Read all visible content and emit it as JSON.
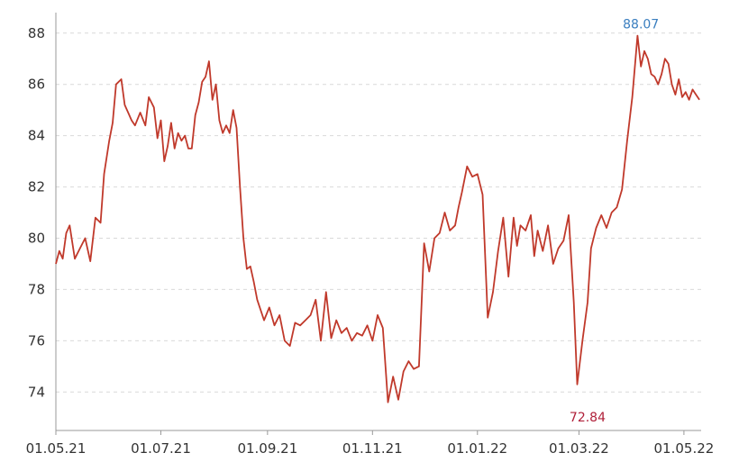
{
  "chart_data": {
    "type": "line",
    "title": "",
    "xlabel": "",
    "ylabel": "",
    "ylim": [
      72.5,
      88.8
    ],
    "y_ticks": [
      74,
      76,
      78,
      80,
      82,
      84,
      86,
      88
    ],
    "x_ticks": [
      "01.05.21",
      "01.07.21",
      "01.09.21",
      "01.11.21",
      "01.01.22",
      "01.03.22",
      "01.05.22"
    ],
    "x_range": [
      "2021-05-01",
      "2022-05-11"
    ],
    "grid": "horizontal-dashed",
    "colors": {
      "line": "#c0392b",
      "max_label": "#3a7ebf",
      "min_label": "#b0203a",
      "grid": "#d9d9d9"
    },
    "series": [
      {
        "x": [
          "2021-05-01",
          "2021-05-03",
          "2021-05-05",
          "2021-05-07",
          "2021-05-09",
          "2021-05-12",
          "2021-05-15",
          "2021-05-18",
          "2021-05-21",
          "2021-05-24",
          "2021-05-27",
          "2021-05-29",
          "2021-06-01",
          "2021-06-03",
          "2021-06-05",
          "2021-06-08",
          "2021-06-10",
          "2021-06-12",
          "2021-06-14",
          "2021-06-16",
          "2021-06-19",
          "2021-06-22",
          "2021-06-24",
          "2021-06-27",
          "2021-06-29",
          "2021-07-01",
          "2021-07-03",
          "2021-07-05",
          "2021-07-07",
          "2021-07-09",
          "2021-07-11",
          "2021-07-13",
          "2021-07-15",
          "2021-07-17",
          "2021-07-19",
          "2021-07-21",
          "2021-07-23",
          "2021-07-25",
          "2021-07-27",
          "2021-07-29",
          "2021-07-31",
          "2021-08-02",
          "2021-08-04",
          "2021-08-06",
          "2021-08-08",
          "2021-08-10",
          "2021-08-12",
          "2021-08-14",
          "2021-08-16",
          "2021-08-18",
          "2021-08-20",
          "2021-08-22",
          "2021-08-24",
          "2021-08-26",
          "2021-08-28",
          "2021-08-30",
          "2021-09-02",
          "2021-09-05",
          "2021-09-08",
          "2021-09-11",
          "2021-09-14",
          "2021-09-17",
          "2021-09-20",
          "2021-09-23",
          "2021-09-26",
          "2021-09-29",
          "2021-10-02",
          "2021-10-05",
          "2021-10-08",
          "2021-10-11",
          "2021-10-14",
          "2021-10-17",
          "2021-10-20",
          "2021-10-23",
          "2021-10-26",
          "2021-10-29",
          "2021-11-01",
          "2021-11-04",
          "2021-11-07",
          "2021-11-10",
          "2021-11-13",
          "2021-11-16",
          "2021-11-19",
          "2021-11-22",
          "2021-11-25",
          "2021-11-28",
          "2021-12-01",
          "2021-12-04",
          "2021-12-07",
          "2021-12-10",
          "2021-12-13",
          "2021-12-16",
          "2021-12-19",
          "2021-12-21",
          "2021-12-23",
          "2021-12-26",
          "2021-12-29",
          "2022-01-01",
          "2022-01-04",
          "2022-01-07",
          "2022-01-10",
          "2022-01-13",
          "2022-01-16",
          "2022-01-19",
          "2022-01-22",
          "2022-01-24",
          "2022-01-26",
          "2022-01-29",
          "2022-02-01",
          "2022-02-03",
          "2022-02-05",
          "2022-02-08",
          "2022-02-11",
          "2022-02-14",
          "2022-02-17",
          "2022-02-20",
          "2022-02-23",
          "2022-02-26",
          "2022-02-28",
          "2022-03-03",
          "2022-03-06",
          "2022-03-08",
          "2022-03-11",
          "2022-03-14",
          "2022-03-17",
          "2022-03-20",
          "2022-03-23",
          "2022-03-26",
          "2022-03-29",
          "2022-04-01",
          "2022-04-04",
          "2022-04-06",
          "2022-04-08",
          "2022-04-10",
          "2022-04-12",
          "2022-04-14",
          "2022-04-16",
          "2022-04-18",
          "2022-04-20",
          "2022-04-22",
          "2022-04-24",
          "2022-04-26",
          "2022-04-28",
          "2022-04-30",
          "2022-05-02",
          "2022-05-04",
          "2022-05-06",
          "2022-05-08",
          "2022-05-10"
        ],
        "values": [
          79.0,
          79.5,
          79.2,
          80.2,
          80.5,
          79.2,
          79.6,
          80.0,
          79.1,
          80.8,
          80.6,
          82.5,
          83.8,
          84.5,
          86.0,
          86.2,
          85.2,
          84.9,
          84.6,
          84.4,
          84.9,
          84.4,
          85.5,
          85.1,
          83.9,
          84.6,
          83.0,
          83.6,
          84.5,
          83.5,
          84.1,
          83.8,
          84.0,
          83.5,
          83.5,
          84.8,
          85.3,
          86.1,
          86.3,
          86.9,
          85.4,
          86.0,
          84.6,
          84.1,
          84.4,
          84.1,
          85.0,
          84.3,
          82.0,
          80.0,
          78.8,
          78.9,
          78.3,
          77.6,
          77.2,
          76.8,
          77.3,
          76.6,
          77.0,
          76.0,
          75.8,
          76.7,
          76.6,
          76.8,
          77.0,
          77.6,
          76.0,
          77.9,
          76.1,
          76.8,
          76.3,
          76.5,
          76.0,
          76.3,
          76.2,
          76.6,
          76.0,
          77.0,
          76.5,
          73.6,
          74.6,
          73.7,
          74.8,
          75.2,
          74.9,
          75.0,
          79.8,
          78.7,
          80.0,
          80.2,
          81.0,
          80.3,
          80.5,
          81.2,
          81.8,
          82.8,
          82.4,
          82.5,
          81.7,
          76.9,
          77.9,
          79.5,
          80.8,
          78.5,
          80.8,
          79.7,
          80.5,
          80.3,
          80.9,
          79.3,
          80.3,
          79.5,
          80.5,
          79.0,
          79.6,
          79.9,
          80.9,
          77.5,
          74.3,
          76.0,
          77.5,
          79.6,
          80.4,
          80.9,
          80.4,
          81.0,
          81.2,
          81.9,
          83.8,
          85.5,
          87.9,
          86.7,
          87.3,
          87.0,
          86.4,
          86.3,
          86.0,
          86.4,
          87.0,
          86.8,
          86.0,
          85.6,
          86.2,
          85.5,
          85.7,
          85.4,
          85.8,
          85.6,
          85.4
        ],
        "line_color": "#c0392b"
      }
    ],
    "annotations": [
      {
        "label": "88.07",
        "x": "2022-04-06",
        "y": 87.9,
        "kind": "max"
      },
      {
        "label": "72.84",
        "x": "2022-03-06",
        "y": 74.3,
        "kind": "min"
      }
    ]
  }
}
